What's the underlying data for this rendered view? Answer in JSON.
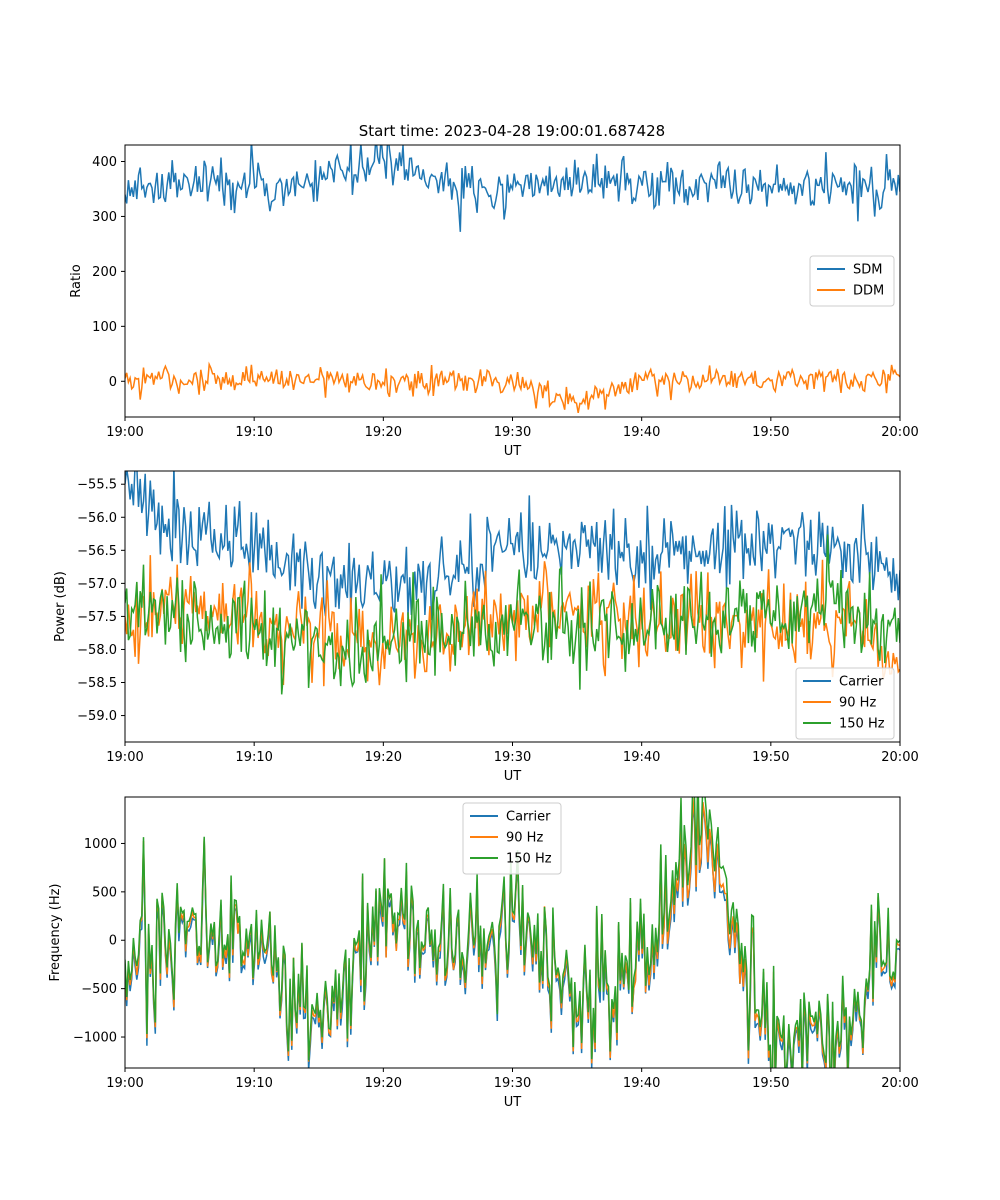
{
  "figure": {
    "title": "Start time: 2023-04-28 19:00:01.687428"
  },
  "chart_data": [
    {
      "type": "line",
      "title": "Start time: 2023-04-28 19:00:01.687428",
      "xlabel": "UT",
      "ylabel": "Ratio",
      "xlim": [
        "19:00",
        "20:00"
      ],
      "ylim": [
        -65,
        430
      ],
      "x_ticks": [
        "19:00",
        "19:10",
        "19:20",
        "19:30",
        "19:40",
        "19:50",
        "20:00"
      ],
      "y_ticks": [
        "0",
        "100",
        "200",
        "300",
        "400"
      ],
      "y_tick_values": [
        0,
        100,
        200,
        300,
        400
      ],
      "legend": "center-right",
      "grid": false,
      "series": [
        {
          "name": "SDM",
          "color": "#1f77b4",
          "x": [
            "19:00",
            "19:05",
            "19:10",
            "19:15",
            "19:20",
            "19:25",
            "19:30",
            "19:35",
            "19:40",
            "19:45",
            "19:50",
            "19:55",
            "20:00"
          ],
          "values": [
            340,
            358,
            352,
            362,
            408,
            355,
            350,
            358,
            356,
            360,
            354,
            362,
            345
          ]
        },
        {
          "name": "DDM",
          "color": "#ff7f0e",
          "x": [
            "19:00",
            "19:05",
            "19:10",
            "19:15",
            "19:20",
            "19:25",
            "19:30",
            "19:35",
            "19:40",
            "19:45",
            "19:50",
            "19:55",
            "20:00"
          ],
          "values": [
            5,
            2,
            0,
            3,
            -2,
            1,
            0,
            -40,
            2,
            0,
            1,
            3,
            8
          ]
        }
      ]
    },
    {
      "type": "line",
      "xlabel": "UT",
      "ylabel": "Power (dB)",
      "xlim": [
        "19:00",
        "20:00"
      ],
      "ylim": [
        -59.4,
        -55.3
      ],
      "x_ticks": [
        "19:00",
        "19:10",
        "19:20",
        "19:30",
        "19:40",
        "19:50",
        "20:00"
      ],
      "y_ticks": [
        "−59.0",
        "−58.5",
        "−58.0",
        "−57.5",
        "−57.0",
        "−56.5",
        "−56.0",
        "−55.5"
      ],
      "y_tick_values": [
        -59.0,
        -58.5,
        -58.0,
        -57.5,
        -57.0,
        -56.5,
        -56.0,
        -55.5
      ],
      "legend": "lower-right",
      "grid": false,
      "series": [
        {
          "name": "Carrier",
          "color": "#1f77b4",
          "x": [
            "19:00",
            "19:05",
            "19:10",
            "19:15",
            "19:20",
            "19:25",
            "19:30",
            "19:35",
            "19:40",
            "19:45",
            "19:50",
            "19:55",
            "20:00"
          ],
          "values": [
            -55.5,
            -56.4,
            -56.4,
            -56.9,
            -57.0,
            -56.9,
            -56.4,
            -56.5,
            -56.7,
            -56.5,
            -56.4,
            -56.4,
            -56.8
          ]
        },
        {
          "name": "90 Hz",
          "color": "#ff7f0e",
          "x": [
            "19:00",
            "19:05",
            "19:10",
            "19:15",
            "19:20",
            "19:25",
            "19:30",
            "19:35",
            "19:40",
            "19:45",
            "19:50",
            "19:55",
            "20:00"
          ],
          "values": [
            -57.5,
            -57.3,
            -57.6,
            -57.8,
            -57.9,
            -57.8,
            -57.6,
            -57.4,
            -57.7,
            -57.5,
            -57.6,
            -57.4,
            -58.3
          ]
        },
        {
          "name": "150 Hz",
          "color": "#2ca02c",
          "x": [
            "19:00",
            "19:05",
            "19:10",
            "19:15",
            "19:20",
            "19:25",
            "19:30",
            "19:35",
            "19:40",
            "19:45",
            "19:50",
            "19:55",
            "20:00"
          ],
          "values": [
            -57.3,
            -57.6,
            -57.7,
            -58.1,
            -57.9,
            -57.8,
            -57.6,
            -57.7,
            -57.6,
            -57.5,
            -57.6,
            -57.3,
            -57.9
          ]
        }
      ]
    },
    {
      "type": "line",
      "xlabel": "UT",
      "ylabel": "Frequency (Hz)",
      "xlim": [
        "19:00",
        "20:00"
      ],
      "ylim": [
        -1320,
        1480
      ],
      "x_ticks": [
        "19:00",
        "19:10",
        "19:20",
        "19:30",
        "19:40",
        "19:50",
        "20:00"
      ],
      "y_ticks": [
        "−1000",
        "−500",
        "0",
        "500",
        "1000"
      ],
      "y_tick_values": [
        -1000,
        -500,
        0,
        500,
        1000
      ],
      "legend": "upper-center",
      "grid": false,
      "series": [
        {
          "name": "Carrier",
          "color": "#1f77b4",
          "x": [
            "19:00",
            "19:05",
            "19:10",
            "19:15",
            "19:20",
            "19:25",
            "19:30",
            "19:35",
            "19:40",
            "19:45",
            "19:50",
            "19:55",
            "20:00"
          ],
          "values": [
            -300,
            100,
            -200,
            -900,
            150,
            -100,
            200,
            -900,
            -200,
            1050,
            -1200,
            -1100,
            -100
          ]
        },
        {
          "name": "90 Hz",
          "color": "#ff7f0e",
          "x": [
            "19:00",
            "19:05",
            "19:10",
            "19:15",
            "19:20",
            "19:25",
            "19:30",
            "19:35",
            "19:40",
            "19:45",
            "19:50",
            "19:55",
            "20:00"
          ],
          "values": [
            -250,
            150,
            -150,
            -850,
            200,
            -50,
            250,
            -850,
            -150,
            1100,
            -1150,
            -1050,
            -50
          ]
        },
        {
          "name": "150 Hz",
          "color": "#2ca02c",
          "x": [
            "19:00",
            "19:05",
            "19:10",
            "19:15",
            "19:20",
            "19:25",
            "19:30",
            "19:35",
            "19:40",
            "19:45",
            "19:50",
            "19:55",
            "20:00"
          ],
          "values": [
            -200,
            200,
            -100,
            -800,
            250,
            0,
            300,
            -800,
            -100,
            1330,
            -1100,
            -1000,
            0
          ]
        }
      ]
    }
  ]
}
